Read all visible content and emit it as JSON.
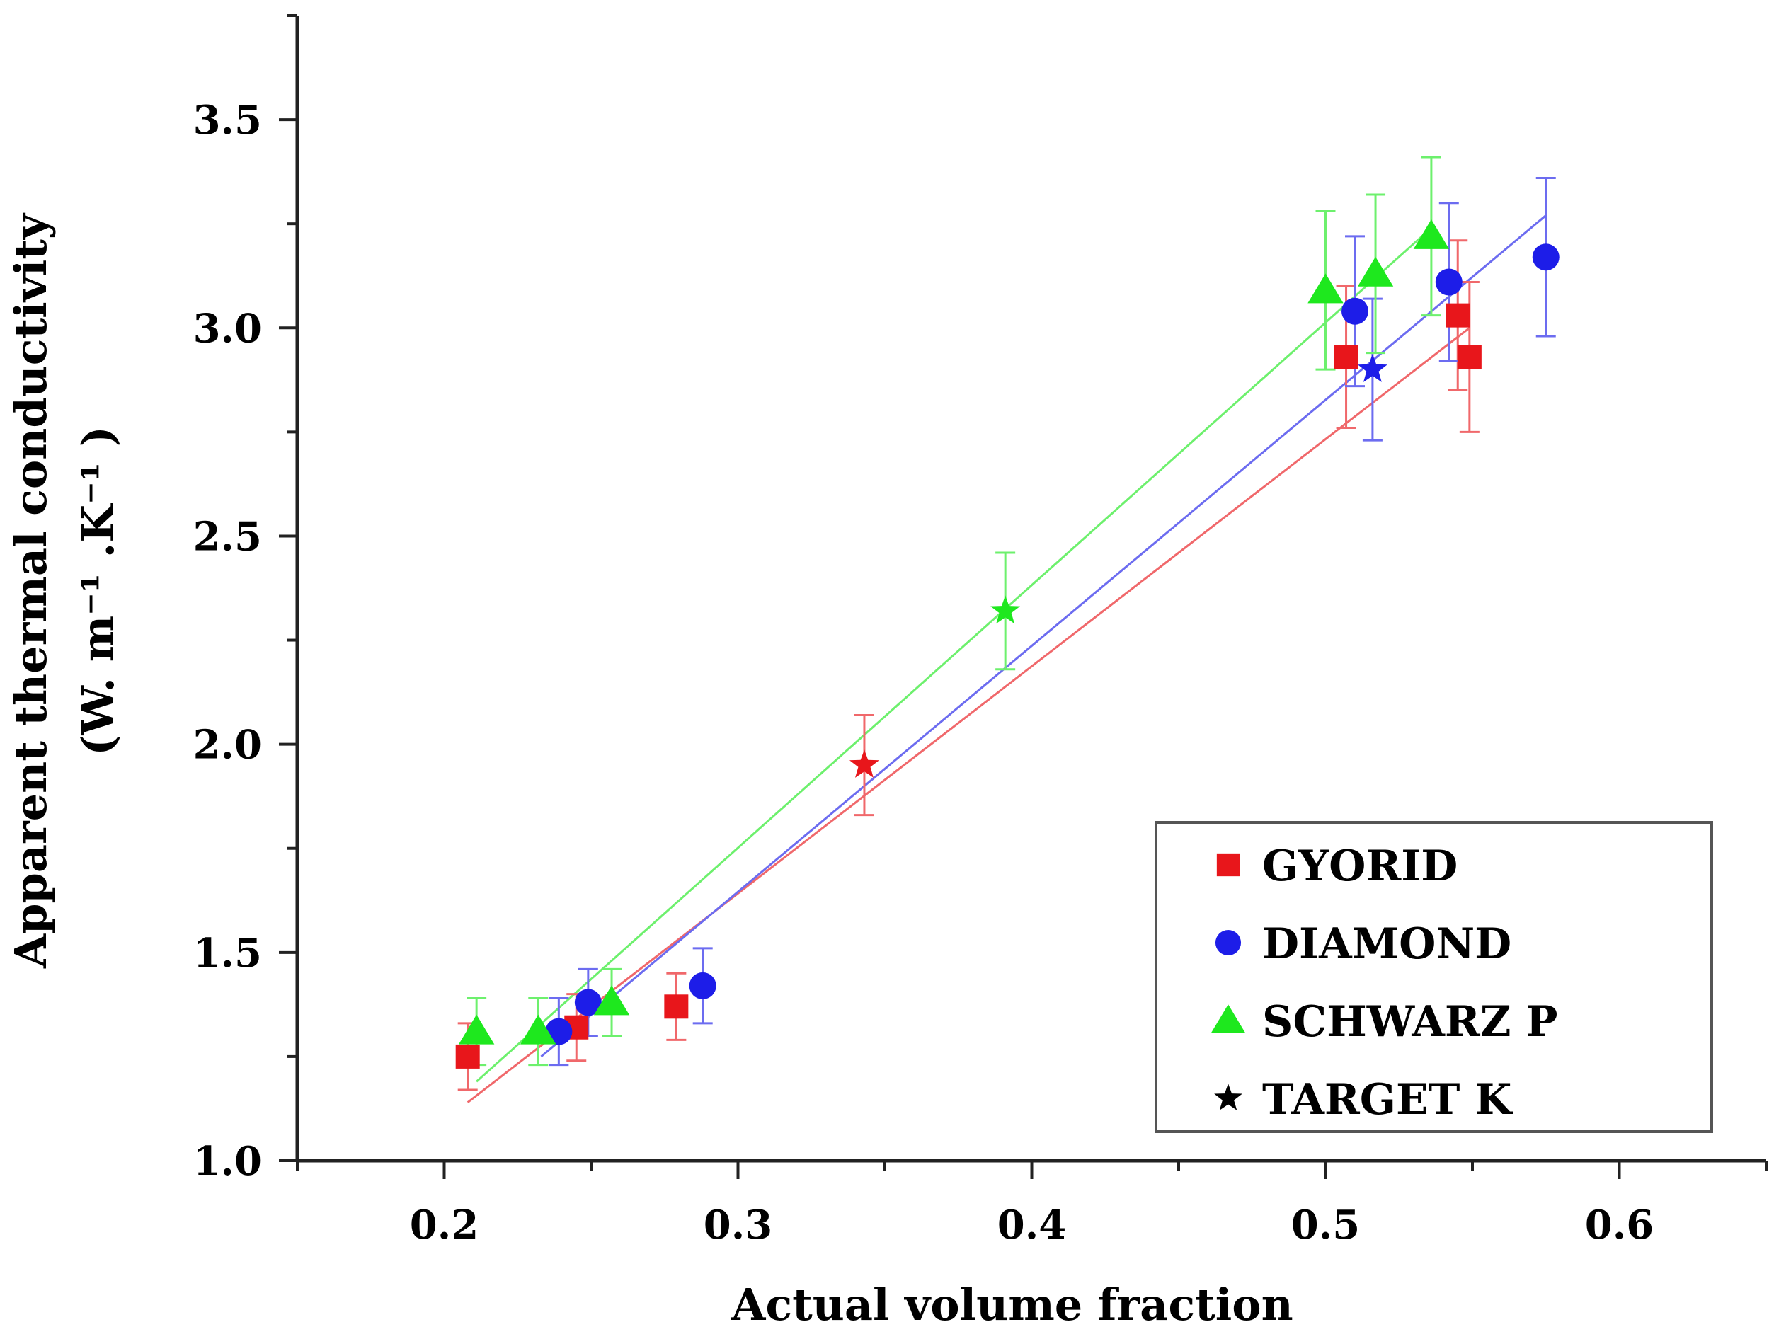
{
  "chart_data": {
    "type": "scatter",
    "title": "",
    "xlabel": "Actual volume fraction",
    "ylabel": "Apparent thermal conductivity",
    "ylabel_units": "(W. m⁻¹ .K⁻¹ )",
    "xlim": [
      0.15,
      0.65
    ],
    "ylim": [
      1.0,
      3.75
    ],
    "x_ticks": [
      "0.2",
      "0.3",
      "0.4",
      "0.5",
      "0.6"
    ],
    "y_ticks": [
      "1.0",
      "1.5",
      "2.0",
      "2.5",
      "3.0",
      "3.5"
    ],
    "legend_position": "bottom-right",
    "series": [
      {
        "name": "GYORID",
        "color": "#e8161b",
        "marker": "square",
        "points": [
          {
            "x": 0.208,
            "y": 1.25,
            "err": 0.08
          },
          {
            "x": 0.245,
            "y": 1.32,
            "err": 0.08
          },
          {
            "x": 0.279,
            "y": 1.37,
            "err": 0.08
          },
          {
            "x": 0.507,
            "y": 2.93,
            "err": 0.17
          },
          {
            "x": 0.545,
            "y": 3.03,
            "err": 0.18
          },
          {
            "x": 0.549,
            "y": 2.93,
            "err": 0.18
          }
        ],
        "target": {
          "x": 0.343,
          "y": 1.95,
          "err": 0.12
        },
        "fit": [
          [
            0.208,
            1.14
          ],
          [
            0.549,
            3.0
          ]
        ]
      },
      {
        "name": "DIAMOND",
        "color": "#1d1de8",
        "marker": "circle",
        "points": [
          {
            "x": 0.239,
            "y": 1.31,
            "err": 0.08
          },
          {
            "x": 0.249,
            "y": 1.38,
            "err": 0.08
          },
          {
            "x": 0.288,
            "y": 1.42,
            "err": 0.09
          },
          {
            "x": 0.51,
            "y": 3.04,
            "err": 0.18
          },
          {
            "x": 0.542,
            "y": 3.11,
            "err": 0.19
          },
          {
            "x": 0.575,
            "y": 3.17,
            "err": 0.19
          }
        ],
        "target": {
          "x": 0.516,
          "y": 2.9,
          "err": 0.17
        },
        "fit": [
          [
            0.233,
            1.25
          ],
          [
            0.575,
            3.27
          ]
        ]
      },
      {
        "name": "SCHWARZ P",
        "color": "#1ee81e",
        "marker": "triangle",
        "points": [
          {
            "x": 0.211,
            "y": 1.31,
            "err": 0.08
          },
          {
            "x": 0.232,
            "y": 1.31,
            "err": 0.08
          },
          {
            "x": 0.257,
            "y": 1.38,
            "err": 0.08
          },
          {
            "x": 0.5,
            "y": 3.09,
            "err": 0.19
          },
          {
            "x": 0.517,
            "y": 3.13,
            "err": 0.19
          },
          {
            "x": 0.536,
            "y": 3.22,
            "err": 0.19
          }
        ],
        "target": {
          "x": 0.391,
          "y": 2.32,
          "err": 0.14
        },
        "fit": [
          [
            0.211,
            1.19
          ],
          [
            0.536,
            3.24
          ]
        ]
      },
      {
        "name": "TARGET K",
        "color": "#000000",
        "marker": "star",
        "points": []
      }
    ]
  }
}
